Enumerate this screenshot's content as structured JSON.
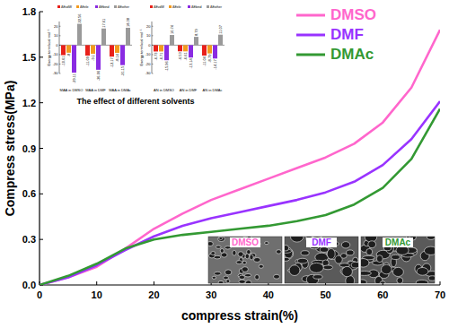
{
  "chart_data": [
    {
      "type": "line",
      "x_label": "compress strain(%)",
      "y_label": "Compress stress(MPa)",
      "x": [
        0,
        5,
        10,
        15,
        20,
        25,
        30,
        35,
        40,
        45,
        50,
        55,
        60,
        65,
        70
      ],
      "series": [
        {
          "name": "DMSO",
          "color": "#ff66cc",
          "values": [
            0,
            0.05,
            0.12,
            0.24,
            0.37,
            0.47,
            0.56,
            0.63,
            0.7,
            0.77,
            0.84,
            0.93,
            1.07,
            1.3,
            1.68
          ]
        },
        {
          "name": "DMF",
          "color": "#9933ff",
          "values": [
            0,
            0.05,
            0.13,
            0.23,
            0.32,
            0.39,
            0.44,
            0.48,
            0.52,
            0.56,
            0.61,
            0.68,
            0.79,
            0.96,
            1.21
          ]
        },
        {
          "name": "DMAc",
          "color": "#339933",
          "values": [
            0,
            0.06,
            0.14,
            0.24,
            0.3,
            0.33,
            0.35,
            0.37,
            0.39,
            0.42,
            0.46,
            0.53,
            0.64,
            0.83,
            1.16
          ]
        }
      ],
      "xlim": [
        0,
        70
      ],
      "xticks": [
        0,
        10,
        20,
        30,
        40,
        50,
        60,
        70
      ],
      "ylim": [
        0,
        1.8
      ],
      "yticks": [
        {
          "value": 0,
          "label": "0.0"
        },
        0.3,
        0.6,
        0.9,
        1.2,
        1.5,
        1.8
      ],
      "legend": "top-right",
      "annotations": [
        {
          "text": "The effect of different solvents"
        }
      ]
    },
    {
      "type": "bar",
      "y_label": "Energy term/kcal·mol⁻¹",
      "categories": [
        "MAA in DMSO",
        "MAA in DMF",
        "MAA in DMAc"
      ],
      "series": [
        {
          "name": "ΔEvdW",
          "color": "#e8201a",
          "values": [
            -10.61,
            -11.09,
            -12.17
          ]
        },
        {
          "name": "ΔEele",
          "color": "#f39a1e",
          "values": [
            -8,
            -9.1,
            -8.14
          ]
        },
        {
          "name": "ΔEbind",
          "color": "#8a2be2",
          "values": [
            -29.11,
            -26.06,
            -21.15
          ]
        },
        {
          "name": "ΔEother",
          "color": "#9a9a9a",
          "values": [
            22.56,
            17.61,
            18.38
          ]
        }
      ],
      "ylim": [
        -30,
        25
      ],
      "yticks": [
        -30,
        -20,
        -10,
        0,
        10,
        20
      ],
      "legend": "top",
      "data_labels": true
    },
    {
      "type": "bar",
      "y_label": "Energy term/kcal·mol⁻¹",
      "categories": [
        "AN in DMSO",
        "AN in DMF",
        "AN in DMAc"
      ],
      "series": [
        {
          "name": "ΔEvdW",
          "color": "#e8201a",
          "values": [
            -6.73,
            -6.53,
            -11.04
          ]
        },
        {
          "name": "ΔEele",
          "color": "#f39a1e",
          "values": [
            -6.71,
            -6.61,
            -8.79
          ]
        },
        {
          "name": "ΔEbind",
          "color": "#8a2be2",
          "values": [
            -15.96,
            -13.14,
            -14.17
          ]
        },
        {
          "name": "ΔEother",
          "color": "#9a9a9a",
          "values": [
            10.74,
            8.79,
            11.07
          ]
        }
      ],
      "ylim": [
        -30,
        25
      ],
      "yticks": [
        -30,
        -20,
        -10,
        0,
        10,
        20
      ],
      "legend": "top",
      "data_labels": true
    }
  ],
  "sem_images": [
    {
      "label": "DMSO",
      "color": "#ff66cc"
    },
    {
      "label": "DMF",
      "color": "#9933ff"
    },
    {
      "label": "DMAc",
      "color": "#339933"
    }
  ]
}
